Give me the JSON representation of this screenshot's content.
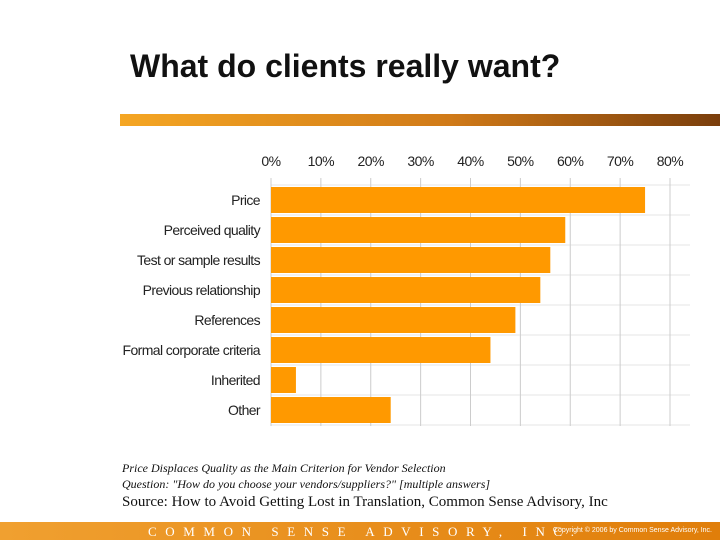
{
  "slide": {
    "title": "What do clients really want?",
    "caption_line1": "Price Displaces Quality as the Main Criterion for Vendor Selection",
    "caption_line2": "Question: \"How do you choose your vendors/suppliers?\" [multiple answers]",
    "source": "Source: How to Avoid Getting Lost in Translation, Common Sense Advisory, Inc",
    "footer_company": "COMMON SENSE ADVISORY, INC.",
    "footer_copyright": "Copyright © 2006 by Common Sense Advisory, Inc.",
    "colors": {
      "accent": "#F39C12",
      "bar": "#FF9900",
      "title_bar_light": "#F5A623",
      "title_bar_dark": "#8B4A10",
      "footer": "#E8920E"
    }
  },
  "chart_data": {
    "type": "bar",
    "orientation": "horizontal",
    "title": "",
    "xlabel": "",
    "ylabel": "",
    "xlim": [
      0,
      80
    ],
    "ticks": [
      "0%",
      "10%",
      "20%",
      "30%",
      "40%",
      "50%",
      "60%",
      "70%",
      "80%"
    ],
    "tick_values": [
      0,
      10,
      20,
      30,
      40,
      50,
      60,
      70,
      80
    ],
    "axis_position": "top",
    "grid": true,
    "categories": [
      "Price",
      "Perceived quality",
      "Test or sample results",
      "Previous relationship",
      "References",
      "Formal corporate criteria",
      "Inherited",
      "Other"
    ],
    "values": [
      75,
      59,
      56,
      54,
      49,
      44,
      5,
      24
    ]
  }
}
